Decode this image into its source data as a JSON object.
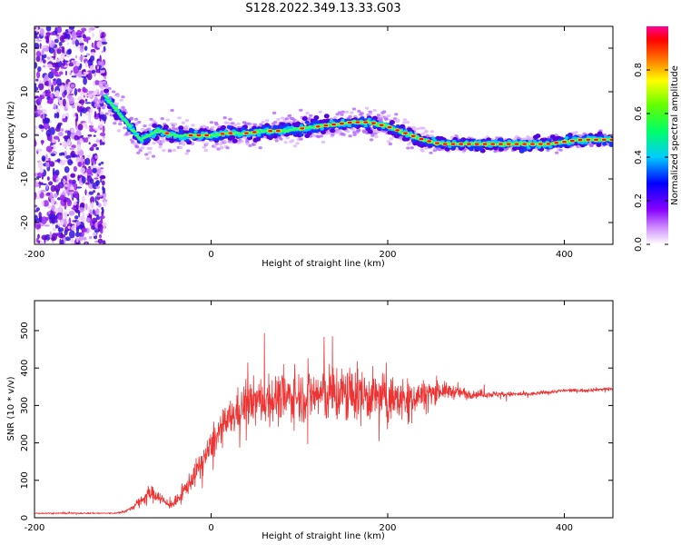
{
  "title": "S128.2022.349.13.33.G03",
  "chart_data": [
    {
      "type": "heatmap",
      "xlabel": "Height of straight line (km)",
      "ylabel": "Frequency (Hz)",
      "xlim": [
        -200,
        455
      ],
      "ylim": [
        -25,
        25
      ],
      "x_ticks": [
        "-200",
        "0",
        "200",
        "400"
      ],
      "y_ticks": [
        "-20",
        "-10",
        "0",
        "10",
        "20"
      ],
      "colorbar": {
        "label": "Normalized spectral amplitude",
        "range": [
          0,
          1
        ],
        "ticks": [
          "0.0",
          "0.2",
          "0.4",
          "0.6",
          "0.8"
        ],
        "colors": [
          "#ffffff",
          "#9900ff",
          "#0000ff",
          "#00ffff",
          "#00ff00",
          "#ffff00",
          "#ff0000",
          "#ff00aa"
        ]
      },
      "ridge": {
        "x": [
          -120,
          -100,
          -80,
          -60,
          -40,
          -20,
          0,
          20,
          40,
          60,
          80,
          100,
          120,
          140,
          160,
          180,
          200,
          220,
          240,
          260,
          280,
          300,
          320,
          340,
          360,
          380,
          400,
          420,
          455
        ],
        "y": [
          9,
          4,
          -1,
          1,
          0,
          0,
          0,
          0.5,
          0.5,
          1,
          1,
          1.5,
          2,
          2.5,
          3,
          3,
          2,
          0.5,
          -1,
          -2,
          -2,
          -2,
          -2,
          -2,
          -2,
          -2,
          -1.5,
          -1,
          -1
        ]
      },
      "noise_region": {
        "x_range": [
          -200,
          -120
        ],
        "ylim": [
          -25,
          25
        ]
      }
    },
    {
      "type": "line",
      "xlabel": "Height of straight line (km)",
      "ylabel": "SNR (10 * v/v)",
      "xlim": [
        -200,
        455
      ],
      "ylim": [
        0,
        580
      ],
      "x_ticks": [
        "-200",
        "0",
        "200",
        "400"
      ],
      "y_ticks": [
        "0",
        "100",
        "200",
        "300",
        "400",
        "500"
      ],
      "color": "#ee3333",
      "series": [
        {
          "x": [
            -200,
            -150,
            -110,
            -100,
            -90,
            -80,
            -70,
            -60,
            -50,
            -40,
            -30,
            -20,
            -10,
            0,
            10,
            20,
            30,
            40,
            60,
            80,
            100,
            120,
            140,
            160,
            180,
            200,
            220,
            240,
            260,
            280,
            300,
            320,
            340,
            360,
            380,
            400,
            420,
            455
          ],
          "mean": [
            12,
            12,
            12,
            15,
            25,
            45,
            65,
            60,
            35,
            40,
            75,
            110,
            150,
            190,
            230,
            260,
            285,
            305,
            315,
            320,
            325,
            330,
            330,
            330,
            325,
            320,
            315,
            330,
            340,
            335,
            330,
            330,
            330,
            330,
            335,
            340,
            340,
            345
          ],
          "spread": [
            3,
            3,
            3,
            5,
            10,
            25,
            40,
            35,
            20,
            25,
            40,
            55,
            65,
            75,
            80,
            90,
            100,
            110,
            120,
            120,
            125,
            135,
            150,
            140,
            120,
            110,
            100,
            70,
            45,
            30,
            20,
            15,
            12,
            10,
            8,
            8,
            8,
            8
          ]
        }
      ]
    }
  ]
}
